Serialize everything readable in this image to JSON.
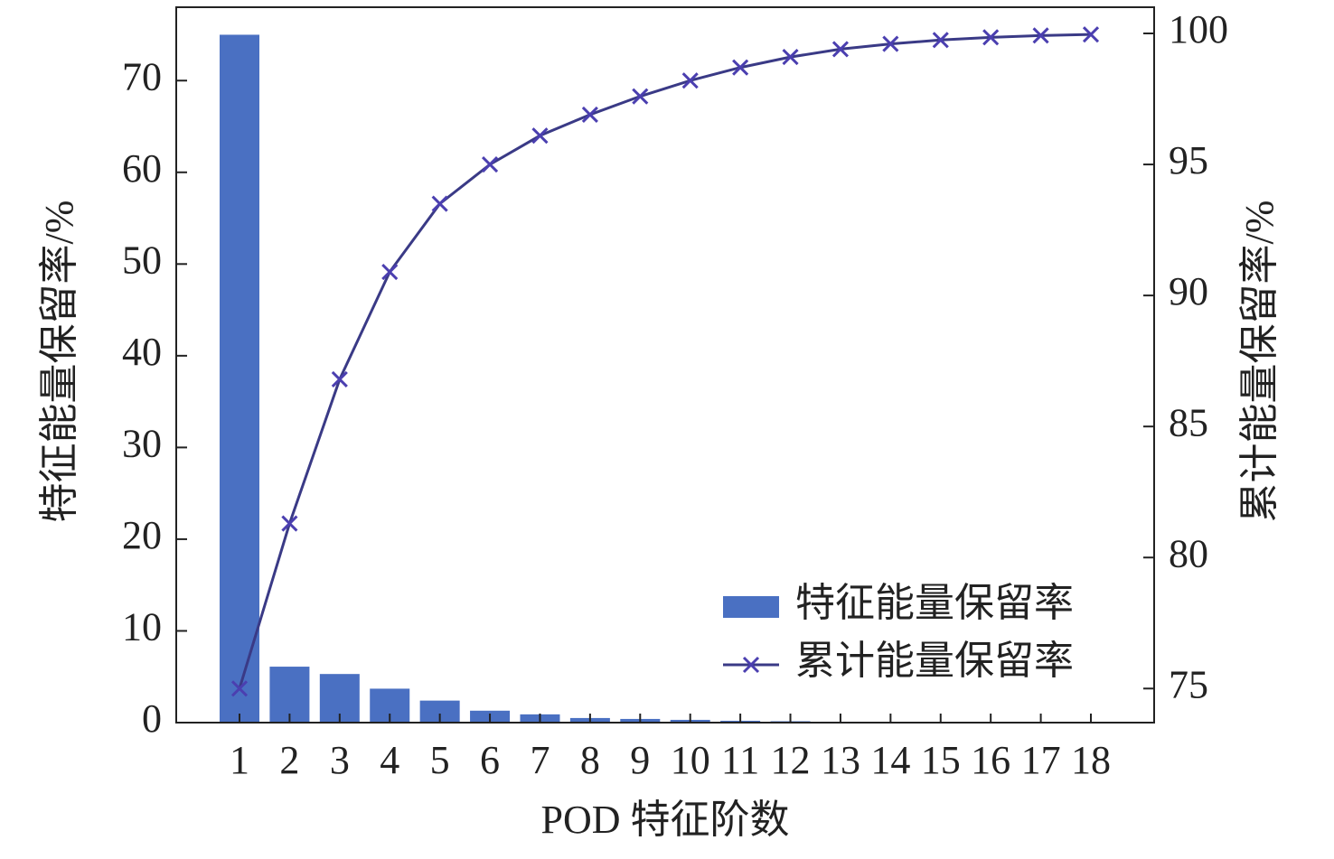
{
  "chart_data": {
    "type": "bar_line",
    "categories": [
      "1",
      "2",
      "3",
      "4",
      "5",
      "6",
      "7",
      "8",
      "9",
      "10",
      "11",
      "12",
      "13",
      "14",
      "15",
      "16",
      "17",
      "18"
    ],
    "xlabel": "POD 特征阶数",
    "ylabel": "特征能量保留率/%",
    "y2label": "累计能量保留率/%",
    "series": [
      {
        "name": "特征能量保留率",
        "type": "bar",
        "color": "#4a70c2",
        "values": [
          75,
          6.1,
          5.3,
          3.7,
          2.4,
          1.3,
          0.9,
          0.5,
          0.4,
          0.3,
          0.2,
          0.15,
          0.1,
          0.08,
          0.06,
          0.05,
          0.04,
          0.03
        ]
      },
      {
        "name": "累计能量保留率",
        "type": "line",
        "axis": "y2",
        "color": "#3a3a86",
        "marker": "x",
        "values": [
          75,
          81.3,
          86.8,
          90.9,
          93.5,
          95.0,
          96.1,
          96.9,
          97.6,
          98.2,
          98.7,
          99.1,
          99.4,
          99.6,
          99.75,
          99.85,
          99.92,
          99.96
        ]
      }
    ],
    "ylim": [
      0,
      78
    ],
    "yticks": [
      0,
      10,
      20,
      30,
      40,
      50,
      60,
      70
    ],
    "y2lim": [
      73.7,
      101
    ],
    "y2ticks": [
      75,
      80,
      85,
      90,
      95,
      100
    ],
    "legend": "lower right"
  }
}
